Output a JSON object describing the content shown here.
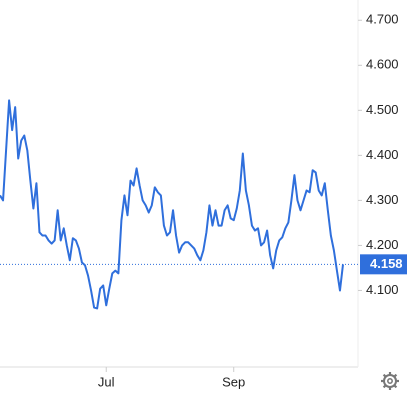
{
  "chart_data": {
    "type": "line",
    "color": "#2f6fdc",
    "values": [
      4.311,
      4.3,
      4.411,
      4.522,
      4.456,
      4.507,
      4.393,
      4.433,
      4.444,
      4.411,
      4.344,
      4.282,
      4.338,
      4.229,
      4.222,
      4.222,
      4.211,
      4.204,
      4.211,
      4.278,
      4.211,
      4.238,
      4.2,
      4.167,
      4.216,
      4.211,
      4.193,
      4.162,
      4.156,
      4.133,
      4.1,
      4.062,
      4.06,
      4.104,
      4.111,
      4.067,
      4.104,
      4.138,
      4.144,
      4.138,
      4.256,
      4.311,
      4.267,
      4.344,
      4.333,
      4.371,
      4.333,
      4.3,
      4.289,
      4.273,
      4.289,
      4.329,
      4.318,
      4.311,
      4.244,
      4.222,
      4.229,
      4.278,
      4.222,
      4.184,
      4.2,
      4.207,
      4.207,
      4.2,
      4.193,
      4.178,
      4.167,
      4.189,
      4.229,
      4.289,
      4.244,
      4.278,
      4.244,
      4.244,
      4.278,
      4.289,
      4.26,
      4.256,
      4.282,
      4.322,
      4.404,
      4.322,
      4.289,
      4.244,
      4.233,
      4.238,
      4.2,
      4.207,
      4.233,
      4.178,
      4.149,
      4.189,
      4.211,
      4.218,
      4.238,
      4.251,
      4.3,
      4.356,
      4.3,
      4.278,
      4.3,
      4.322,
      4.318,
      4.367,
      4.362,
      4.322,
      4.311,
      4.338,
      4.278,
      4.222,
      4.189,
      4.144,
      4.1,
      4.158
    ],
    "xlim": [
      0,
      113
    ],
    "xticks": [
      {
        "value": 35,
        "label": "Jul"
      },
      {
        "value": 77,
        "label": "Sep"
      }
    ],
    "ylim": [
      3.93,
      4.745
    ],
    "yticks": [
      {
        "value": 4.1,
        "label": "4.100"
      },
      {
        "value": 4.2,
        "label": "4.200"
      },
      {
        "value": 4.3,
        "label": "4.300"
      },
      {
        "value": 4.4,
        "label": "4.400"
      },
      {
        "value": 4.5,
        "label": "4.500"
      },
      {
        "value": 4.6,
        "label": "4.600"
      },
      {
        "value": 4.7,
        "label": "4.700"
      }
    ]
  }
}
